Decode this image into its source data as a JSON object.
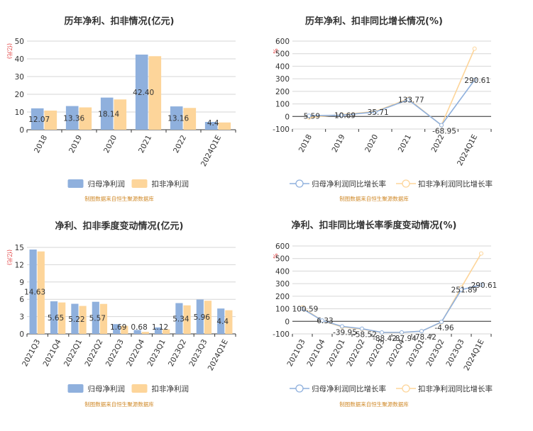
{
  "colors": {
    "series1": "#8fb0dd",
    "series2": "#fdd59a",
    "accent_label": "#e03a3a",
    "source": "#d08a2a"
  },
  "chart_data": [
    {
      "type": "bar",
      "title": "历年净利、扣非情况(亿元)",
      "ylabel": "(亿元)",
      "source": "制图数据来自恒生聚源数据库",
      "categories": [
        "2018",
        "2019",
        "2020",
        "2021",
        "2022",
        "2024Q1E"
      ],
      "series": [
        {
          "name": "归母净利润",
          "values": [
            12.07,
            13.36,
            18.14,
            42.4,
            13.16,
            4.4
          ],
          "labels": [
            "12.07",
            "13.36",
            "18.14",
            "42.40",
            "13.16",
            "4.4"
          ]
        },
        {
          "name": "扣非净利润",
          "values": [
            10.8,
            12.6,
            17.1,
            41.5,
            12.3,
            4.1
          ]
        }
      ],
      "ylim": [
        0,
        50
      ],
      "yticks": [
        0,
        10,
        20,
        30,
        40,
        50
      ],
      "grid": true,
      "legend": "bottom"
    },
    {
      "type": "line",
      "title": "历年净利、扣非同比增长情况(%)",
      "ylabel": "%",
      "source": "制图数据来自恒生聚源数据库",
      "categories": [
        "2018",
        "2019",
        "2020",
        "2021",
        "2022",
        "2024Q1E"
      ],
      "series": [
        {
          "name": "归母净利润同比增长率",
          "values": [
            5.59,
            10.69,
            35.71,
            133.77,
            -68.95,
            290.61
          ],
          "labels": [
            "5.59",
            "10.69",
            "35.71",
            "133.77",
            "-68.95",
            "290.61"
          ]
        },
        {
          "name": "扣非净利润同比增长率",
          "values": [
            -8,
            15,
            40,
            140,
            -70,
            540
          ]
        }
      ],
      "ylim": [
        -100,
        600
      ],
      "yticks": [
        -100,
        0,
        100,
        200,
        300,
        400,
        500,
        600
      ],
      "grid": true,
      "legend": "bottom"
    },
    {
      "type": "bar",
      "title": "净利、扣非季度变动情况(亿元)",
      "ylabel": "(亿元)",
      "source": "制图数据来自恒生聚源数据库",
      "categories": [
        "2021Q3",
        "2021Q4",
        "2022Q1",
        "2022Q2",
        "2022Q3",
        "2022Q4",
        "2023Q1",
        "2023Q2",
        "2023Q3",
        "2024Q1E"
      ],
      "series": [
        {
          "name": "归母净利润",
          "values": [
            14.63,
            5.65,
            5.22,
            5.57,
            1.69,
            0.68,
            1.12,
            5.34,
            5.96,
            4.4
          ],
          "labels": [
            "14.63",
            "5.65",
            "5.22",
            "5.57",
            "1.69",
            "0.68",
            "1.12",
            "5.34",
            "5.96",
            "4.4"
          ]
        },
        {
          "name": "扣非净利润",
          "values": [
            14.3,
            5.45,
            4.85,
            5.2,
            1.4,
            0.35,
            0.8,
            4.95,
            5.75,
            4.1
          ]
        }
      ],
      "ylim": [
        0,
        15
      ],
      "yticks": [
        0,
        3,
        6,
        9,
        12,
        15
      ],
      "grid": true,
      "legend": "bottom"
    },
    {
      "type": "line",
      "title": "净利、扣非同比增长率季度变动情况(%)",
      "ylabel": "%",
      "source": "制图数据来自恒生聚源数据库",
      "categories": [
        "2021Q3",
        "2021Q4",
        "2022Q1",
        "2022Q2",
        "2022Q3",
        "2022Q4",
        "2023Q1",
        "2023Q2",
        "2023Q3",
        "2024Q1E"
      ],
      "series": [
        {
          "name": "归母净利润同比增长率",
          "values": [
            100.59,
            6.33,
            -39.95,
            -58.52,
            -88.42,
            -87.94,
            -78.42,
            -4.96,
            251.89,
            290.61
          ],
          "labels": [
            "100.59",
            "6.33",
            "-39.95",
            "-58.52",
            "-88.42",
            "-87.94",
            "-78.42",
            "-4.96",
            "251.89",
            "290.61"
          ]
        },
        {
          "name": "扣非净利润同比增长率",
          "values": [
            110,
            5,
            -45,
            -62,
            -90,
            -90,
            -78,
            -8,
            270,
            540
          ]
        }
      ],
      "ylim": [
        -100,
        600
      ],
      "yticks": [
        -100,
        0,
        100,
        200,
        300,
        400,
        500,
        600
      ],
      "grid": true,
      "legend": "bottom"
    }
  ]
}
